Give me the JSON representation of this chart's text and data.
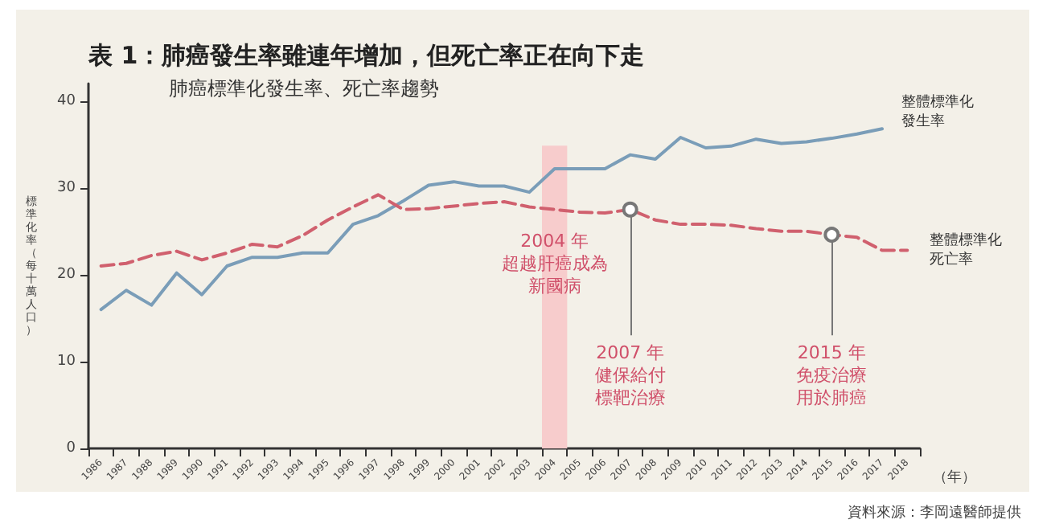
{
  "chart_data": {
    "type": "line",
    "title": "表 1：肺癌發生率雖連年增加，但死亡率正在向下走",
    "subtitle": "肺癌標準化發生率、死亡率趨勢",
    "ylabel": "標準化率（每十萬人口）",
    "xlabel": "（年）",
    "categories": [
      "1986",
      "1987",
      "1988",
      "1989",
      "1990",
      "1991",
      "1992",
      "1993",
      "1994",
      "1995",
      "1996",
      "1997",
      "1998",
      "1999",
      "2000",
      "2001",
      "2002",
      "2003",
      "2004",
      "2005",
      "2006",
      "2007",
      "2008",
      "2009",
      "2010",
      "2011",
      "2012",
      "2013",
      "2014",
      "2015",
      "2016",
      "2017",
      "2018"
    ],
    "series": [
      {
        "name": "整體標準化發生率",
        "color": "#7a9db8",
        "line_style": "solid",
        "values": [
          16,
          18.2,
          16.5,
          20.2,
          17.7,
          21,
          22,
          22,
          22.5,
          22.5,
          25.8,
          26.8,
          28.5,
          30.3,
          30.7,
          30.2,
          30.2,
          29.5,
          32.2,
          32.2,
          32.2,
          33.8,
          33.3,
          35.8,
          34.6,
          34.8,
          35.6,
          35.1,
          35.3,
          35.7,
          36.2,
          36.8,
          null
        ]
      },
      {
        "name": "整體標準化死亡率",
        "color": "#d0606e",
        "line_style": "dashed",
        "values": [
          21,
          21.3,
          22.2,
          22.7,
          21.7,
          22.5,
          23.5,
          23.2,
          24.5,
          26.3,
          27.8,
          29.2,
          27.5,
          27.6,
          27.9,
          28.2,
          28.4,
          27.8,
          27.5,
          27.2,
          27.1,
          27.5,
          26.3,
          25.8,
          25.8,
          25.7,
          25.3,
          25,
          25,
          24.6,
          24.3,
          22.8,
          22.8
        ]
      }
    ],
    "ylim": [
      0,
      42
    ],
    "yticks": [
      0,
      10,
      20,
      30,
      40
    ],
    "grid": false,
    "legend": false,
    "marker": "none",
    "bands": [
      {
        "axis": "x",
        "from": "2004",
        "to": "2004",
        "label": "2004 年超越肝癌成為新國病",
        "color": "#f7cccc"
      }
    ],
    "annotations": [
      {
        "text": "2007 年健保給付標靶治療",
        "x": "2007",
        "y": 27.5
      },
      {
        "text": "2015 年免疫治療用於肺癌",
        "x": "2015",
        "y": 24.6
      },
      "資料來源：李岡遠醫師提供"
    ]
  }
}
